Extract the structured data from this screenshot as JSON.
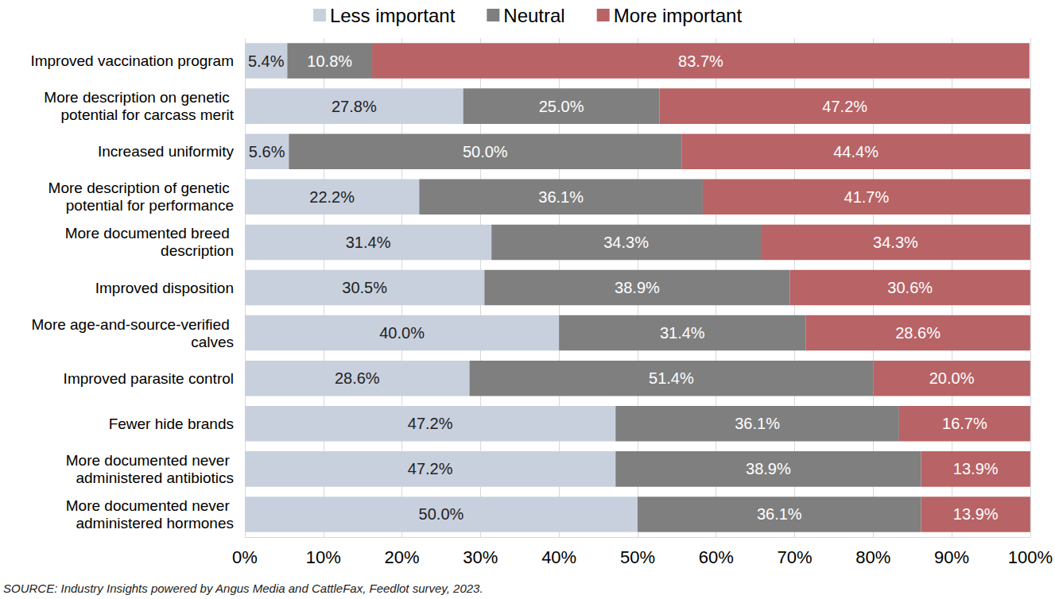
{
  "chart_data": {
    "type": "bar",
    "orientation": "horizontal",
    "stacked": true,
    "data_labels": true,
    "grid": true,
    "legend": "top",
    "source": "SOURCE: Industry Insights powered by Angus Media and CattleFax, Feedlot survey, 2023.",
    "categories": [
      "Improved vaccination program",
      "More description on genetic potential for carcass merit",
      "Increased uniformity",
      "More description of genetic potential for performance",
      "More documented breed description",
      "Improved disposition",
      "More age-and-source-verified calves",
      "Improved parasite control",
      "Fewer hide brands",
      "More documented never administered antibiotics",
      "More documented never administered hormones"
    ],
    "series": [
      {
        "name": "Less important",
        "color": "#c8d0de",
        "values": [
          5.4,
          27.8,
          5.6,
          22.2,
          31.4,
          30.5,
          40.0,
          28.6,
          47.2,
          47.2,
          50.0
        ],
        "value_labels": [
          "5.4%",
          "27.8%",
          "5.6%",
          "22.2%",
          "31.4%",
          "30.5%",
          "40.0%",
          "28.6%",
          "47.2%",
          "47.2%",
          "50.0%"
        ]
      },
      {
        "name": "Neutral",
        "color": "#7f7f7f",
        "values": [
          10.8,
          25.0,
          50.0,
          36.1,
          34.3,
          38.9,
          31.4,
          51.4,
          36.1,
          38.9,
          36.1
        ],
        "value_labels": [
          "10.8%",
          "25.0%",
          "50.0%",
          "36.1%",
          "34.3%",
          "38.9%",
          "31.4%",
          "51.4%",
          "36.1%",
          "38.9%",
          "36.1%"
        ]
      },
      {
        "name": "More important",
        "color": "#b86366",
        "values": [
          83.7,
          47.2,
          44.4,
          41.7,
          34.3,
          30.6,
          28.6,
          20.0,
          16.7,
          13.9,
          13.9
        ],
        "value_labels": [
          "83.7%",
          "47.2%",
          "44.4%",
          "41.7%",
          "34.3%",
          "30.6%",
          "28.6%",
          "20.0%",
          "16.7%",
          "13.9%",
          "13.9%"
        ]
      }
    ],
    "xlim": [
      0,
      100
    ],
    "xticks": [
      {
        "value": 0,
        "label": "0%"
      },
      {
        "value": 10,
        "label": "10%"
      },
      {
        "value": 20,
        "label": "20%"
      },
      {
        "value": 30,
        "label": "30%"
      },
      {
        "value": 40,
        "label": "40%"
      },
      {
        "value": 50,
        "label": "50%"
      },
      {
        "value": 60,
        "label": "60%"
      },
      {
        "value": 70,
        "label": "70%"
      },
      {
        "value": 80,
        "label": "80%"
      },
      {
        "value": 90,
        "label": "90%"
      },
      {
        "value": 100,
        "label": "100%"
      }
    ]
  }
}
